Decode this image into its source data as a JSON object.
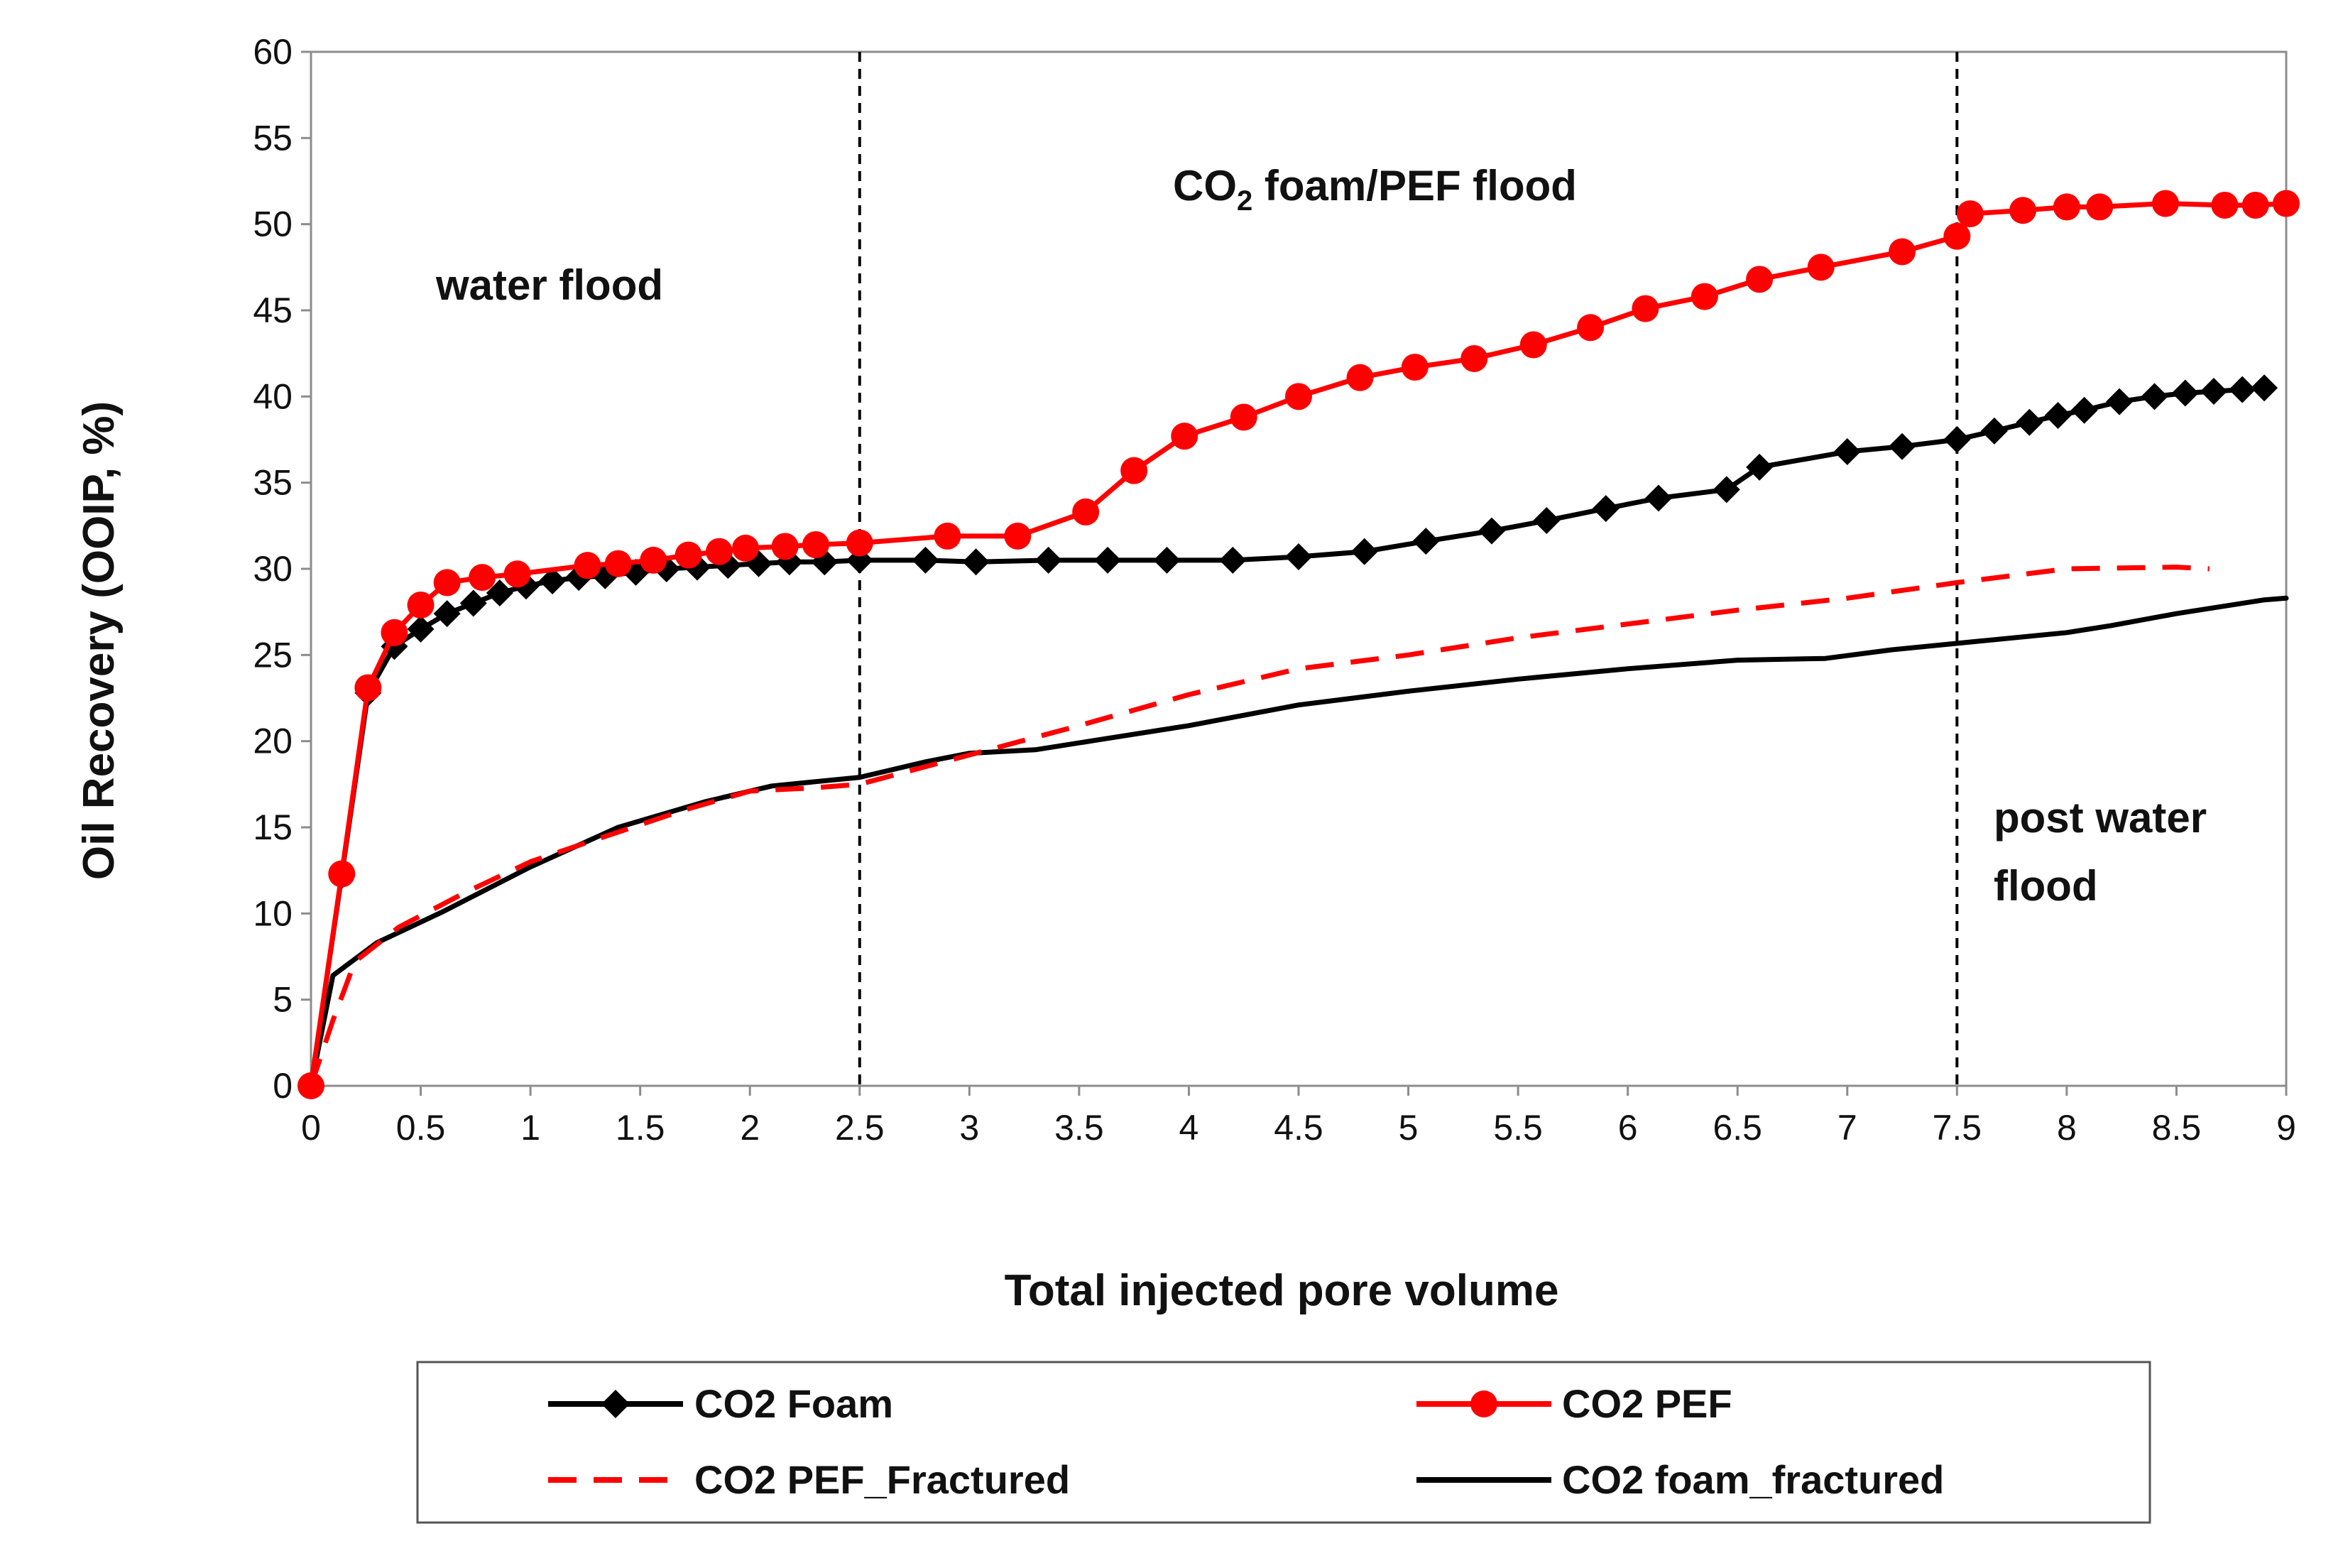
{
  "chart_data": {
    "type": "line",
    "xlabel": "Total injected pore volume",
    "ylabel": "Oil Recovery (OOIP, %)",
    "xlim": [
      0,
      9
    ],
    "ylim": [
      0,
      60
    ],
    "x_ticks": [
      "0",
      "0.5",
      "1",
      "1.5",
      "2",
      "2.5",
      "3",
      "3.5",
      "4",
      "4.5",
      "5",
      "5.5",
      "6",
      "6.5",
      "7",
      "7.5",
      "8",
      "8.5",
      "9"
    ],
    "y_ticks": [
      "0",
      "5",
      "10",
      "15",
      "20",
      "25",
      "30",
      "35",
      "40",
      "45",
      "50",
      "55",
      "60"
    ],
    "grid": false,
    "legend_position": "bottom",
    "annotations": {
      "water_flood": "water flood",
      "foam_prefix": "CO",
      "foam_subscript": "2",
      "foam_suffix": " foam/PEF flood",
      "post_line1": "post water",
      "post_line2": "flood"
    },
    "vertical_lines": [
      2.5,
      7.5
    ],
    "series": [
      {
        "name": "CO2 Foam",
        "color": "#000000",
        "style": "solid",
        "marker": "diamond",
        "x": [
          0,
          0.14,
          0.26,
          0.38,
          0.5,
          0.62,
          0.74,
          0.86,
          0.98,
          1.1,
          1.22,
          1.34,
          1.48,
          1.62,
          1.76,
          1.9,
          2.04,
          2.18,
          2.34,
          2.5,
          2.8,
          3.03,
          3.36,
          3.63,
          3.9,
          4.2,
          4.5,
          4.8,
          5.08,
          5.38,
          5.63,
          5.9,
          6.14,
          6.45,
          6.6,
          7.0,
          7.25,
          7.5,
          7.67,
          7.83,
          7.96,
          8.08,
          8.24,
          8.4,
          8.54,
          8.67,
          8.8,
          8.9
        ],
        "values": [
          0,
          12.2,
          22.8,
          25.5,
          26.5,
          27.4,
          28.0,
          28.6,
          29.0,
          29.3,
          29.5,
          29.6,
          29.8,
          30.0,
          30.1,
          30.2,
          30.3,
          30.4,
          30.4,
          30.5,
          30.5,
          30.4,
          30.5,
          30.5,
          30.5,
          30.5,
          30.7,
          31.0,
          31.6,
          32.2,
          32.8,
          33.5,
          34.1,
          34.6,
          35.9,
          36.8,
          37.1,
          37.5,
          38.0,
          38.5,
          38.9,
          39.2,
          39.7,
          40.0,
          40.2,
          40.3,
          40.4,
          40.5
        ]
      },
      {
        "name": "CO2 PEF",
        "color": "#ff0000",
        "style": "solid",
        "marker": "circle",
        "x": [
          0,
          0.14,
          0.26,
          0.38,
          0.5,
          0.62,
          0.78,
          0.94,
          1.26,
          1.4,
          1.56,
          1.72,
          1.86,
          1.98,
          2.16,
          2.3,
          2.5,
          2.9,
          3.22,
          3.53,
          3.75,
          3.98,
          4.25,
          4.5,
          4.78,
          5.03,
          5.3,
          5.57,
          5.83,
          6.08,
          6.35,
          6.6,
          6.88,
          7.25,
          7.5,
          7.56,
          7.8,
          8.0,
          8.15,
          8.45,
          8.72,
          8.86,
          9.0
        ],
        "values": [
          0,
          12.3,
          23.1,
          26.3,
          27.9,
          29.2,
          29.5,
          29.7,
          30.2,
          30.3,
          30.5,
          30.8,
          31.0,
          31.2,
          31.3,
          31.4,
          31.5,
          31.9,
          31.9,
          33.3,
          35.7,
          37.7,
          38.8,
          40.0,
          41.1,
          41.7,
          42.2,
          43.0,
          44.0,
          45.1,
          45.8,
          46.8,
          47.5,
          48.4,
          49.3,
          50.6,
          50.8,
          51.0,
          51.0,
          51.2,
          51.1,
          51.1,
          51.2
        ]
      },
      {
        "name": "CO2 PEF_Fractured",
        "color": "#ff0000",
        "style": "dashed",
        "marker": "none",
        "x": [
          0,
          0.1,
          0.2,
          0.4,
          0.7,
          1.0,
          1.3,
          1.7,
          2.0,
          2.3,
          2.5,
          3.0,
          3.5,
          4.0,
          4.5,
          5.0,
          5.5,
          6.0,
          6.5,
          7.0,
          7.5,
          8.0,
          8.5,
          8.65
        ],
        "values": [
          0,
          3.8,
          7.2,
          9.2,
          11.2,
          13.0,
          14.3,
          16.0,
          17.1,
          17.3,
          17.5,
          19.2,
          20.9,
          22.7,
          24.2,
          25.0,
          26.0,
          26.8,
          27.6,
          28.3,
          29.2,
          30.0,
          30.1,
          30.0
        ]
      },
      {
        "name": "CO2 foam_fractured",
        "color": "#000000",
        "style": "solid",
        "marker": "none",
        "x": [
          0,
          0.1,
          0.3,
          0.6,
          1.0,
          1.4,
          1.8,
          2.1,
          2.5,
          2.8,
          3.0,
          3.3,
          3.6,
          4.0,
          4.5,
          5.0,
          5.5,
          6.0,
          6.5,
          6.9,
          7.2,
          7.6,
          8.0,
          8.2,
          8.5,
          8.9,
          9.0
        ],
        "values": [
          0,
          6.4,
          8.3,
          10.1,
          12.7,
          15.0,
          16.5,
          17.4,
          17.9,
          18.8,
          19.3,
          19.5,
          20.1,
          20.9,
          22.1,
          22.9,
          23.6,
          24.2,
          24.7,
          24.8,
          25.3,
          25.8,
          26.3,
          26.7,
          27.4,
          28.2,
          28.3
        ]
      }
    ]
  }
}
